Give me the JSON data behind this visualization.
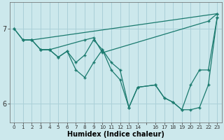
{
  "xlabel": "Humidex (Indice chaleur)",
  "background_color": "#cce8ec",
  "grid_color": "#aad0d8",
  "line_color": "#1a7a6e",
  "xlim": [
    -0.5,
    23.5
  ],
  "ylim": [
    5.75,
    7.35
  ],
  "yticks": [
    6,
    7
  ],
  "xtick_labels": [
    "0",
    "1",
    "2",
    "3",
    "4",
    "5",
    "6",
    "7",
    "8",
    "9",
    "10",
    "11",
    "12",
    "13",
    "14",
    "",
    "16",
    "17",
    "18",
    "19",
    "20",
    "21",
    "22",
    "23"
  ],
  "xtick_positions": [
    0,
    1,
    2,
    3,
    4,
    5,
    6,
    7,
    8,
    9,
    10,
    11,
    12,
    13,
    14,
    15,
    16,
    17,
    18,
    19,
    20,
    21,
    22,
    23
  ],
  "lines": [
    {
      "x": [
        0,
        1,
        2,
        23
      ],
      "y": [
        7.0,
        6.85,
        6.85,
        7.2
      ]
    },
    {
      "x": [
        0,
        1,
        2,
        3,
        4,
        8,
        9,
        10,
        22,
        23
      ],
      "y": [
        7.0,
        6.85,
        6.85,
        6.72,
        6.72,
        6.85,
        6.88,
        6.68,
        7.1,
        7.2
      ]
    },
    {
      "x": [
        1,
        2,
        3,
        4,
        5,
        6,
        7,
        8,
        9,
        10,
        11,
        12,
        13,
        14,
        16,
        17,
        18,
        19,
        20,
        21,
        22,
        23
      ],
      "y": [
        6.85,
        6.85,
        6.72,
        6.72,
        6.62,
        6.7,
        6.55,
        6.65,
        6.85,
        6.72,
        6.55,
        6.45,
        5.95,
        6.22,
        6.25,
        6.08,
        6.02,
        5.92,
        6.25,
        6.45,
        6.45,
        7.15
      ]
    },
    {
      "x": [
        3,
        4,
        5,
        6,
        7,
        8,
        9,
        10,
        11,
        12,
        13,
        14,
        16,
        17,
        18,
        19,
        20,
        21,
        22,
        23
      ],
      "y": [
        6.72,
        6.72,
        6.62,
        6.7,
        6.45,
        6.35,
        6.55,
        6.72,
        6.45,
        6.32,
        5.95,
        6.22,
        6.25,
        6.08,
        6.02,
        5.92,
        5.92,
        5.95,
        6.25,
        7.15
      ]
    }
  ]
}
